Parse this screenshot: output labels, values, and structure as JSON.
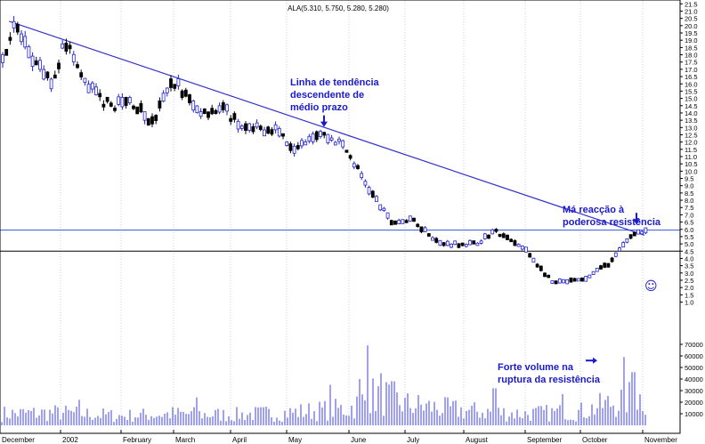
{
  "window": {
    "title": "ALA(5.310, 5.750, 5.280, 5.280)"
  },
  "chart_data": {
    "type": "candlestick",
    "title": "ALA(5.310, 5.750, 5.280, 5.280)",
    "price_axis": {
      "range": [
        0.7,
        21.6
      ],
      "ticks": [
        "1.0",
        "1.5",
        "2.0",
        "2.5",
        "3.0",
        "3.5",
        "4.0",
        "4.5",
        "5.0",
        "5.5",
        "6.0",
        "6.5",
        "7.0",
        "7.5",
        "8.0",
        "8.5",
        "9.0",
        "9.5",
        "10.0",
        "10.5",
        "11.0",
        "11.5",
        "12.0",
        "12.5",
        "13.0",
        "13.5",
        "14.0",
        "14.5",
        "15.0",
        "15.5",
        "16.0",
        "16.5",
        "17.0",
        "17.5",
        "18.0",
        "18.5",
        "19.0",
        "19.5",
        "20.0",
        "20.5",
        "21.0",
        "21.5"
      ]
    },
    "volume_axis": {
      "range": [
        0,
        75000
      ],
      "ticks": [
        "10000",
        "20000",
        "30000",
        "40000",
        "50000",
        "60000",
        "70000"
      ]
    },
    "months": [
      "December",
      "2002",
      "February",
      "March",
      "April",
      "May",
      "June",
      "July",
      "August",
      "September",
      "October",
      "November"
    ],
    "price_path": [
      {
        "month": 0,
        "price": 17.5
      },
      {
        "month": 0.25,
        "price": 20.0
      },
      {
        "month": 0.6,
        "price": 17.2
      },
      {
        "month": 0.9,
        "price": 16.0
      },
      {
        "month": 1.05,
        "price": 19.3
      },
      {
        "month": 1.4,
        "price": 16.0
      },
      {
        "month": 1.8,
        "price": 14.5
      },
      {
        "month": 2.2,
        "price": 14.8
      },
      {
        "month": 2.6,
        "price": 13.3
      },
      {
        "month": 3.0,
        "price": 16.3
      },
      {
        "month": 3.4,
        "price": 14.2
      },
      {
        "month": 3.9,
        "price": 14.2
      },
      {
        "month": 4.3,
        "price": 12.8
      },
      {
        "month": 4.8,
        "price": 13.0
      },
      {
        "month": 5.1,
        "price": 11.7
      },
      {
        "month": 5.5,
        "price": 12.7
      },
      {
        "month": 5.9,
        "price": 11.8
      },
      {
        "month": 6.4,
        "price": 8.5
      },
      {
        "month": 6.75,
        "price": 6.5
      },
      {
        "month": 7.15,
        "price": 6.6
      },
      {
        "month": 7.6,
        "price": 5.0
      },
      {
        "month": 8.2,
        "price": 5.0
      },
      {
        "month": 8.5,
        "price": 5.9
      },
      {
        "month": 9.0,
        "price": 4.6
      },
      {
        "month": 9.5,
        "price": 2.3
      },
      {
        "month": 10.05,
        "price": 2.5
      },
      {
        "month": 10.5,
        "price": 3.8
      },
      {
        "month": 10.85,
        "price": 5.8
      }
    ],
    "volume_path": [
      {
        "month": 0,
        "volume": 11000
      },
      {
        "month": 1.0,
        "volume": 12000
      },
      {
        "month": 2.0,
        "volume": 9000
      },
      {
        "month": 3.0,
        "volume": 11000
      },
      {
        "month": 4.0,
        "volume": 10000
      },
      {
        "month": 5.0,
        "volume": 12000
      },
      {
        "month": 6.0,
        "volume": 16000
      },
      {
        "month": 6.5,
        "volume": 30000
      },
      {
        "month": 7.0,
        "volume": 20000
      },
      {
        "month": 8.0,
        "volume": 14000
      },
      {
        "month": 9.0,
        "volume": 11000
      },
      {
        "month": 10.0,
        "volume": 13000
      },
      {
        "month": 10.8,
        "volume": 26000
      }
    ],
    "volume_spikes": [
      {
        "month": 6.35,
        "volume": 69000
      },
      {
        "month": 6.55,
        "volume": 45000
      },
      {
        "month": 6.2,
        "volume": 40000
      },
      {
        "month": 5.7,
        "volume": 35000
      },
      {
        "month": 6.8,
        "volume": 38000
      },
      {
        "month": 10.7,
        "volume": 59000
      },
      {
        "month": 10.85,
        "volume": 46000
      },
      {
        "month": 8.5,
        "volume": 32000
      },
      {
        "month": 9.7,
        "volume": 27000
      },
      {
        "month": 3.4,
        "volume": 24000
      },
      {
        "month": 1.3,
        "volume": 22000
      }
    ],
    "trendline": {
      "from": {
        "month": 0.15,
        "price": 20.3
      },
      "to": {
        "month": 11.05,
        "price": 5.6
      }
    },
    "support_lines": [
      {
        "price": 5.95
      },
      {
        "price": 4.5
      }
    ],
    "annotations": [
      {
        "lines": [
          "Linha de tendência",
          "descendente de",
          "médio prazo"
        ],
        "arrow": {
          "month": 5.6,
          "price": 13.1
        }
      },
      {
        "lines": [
          "Má reacção à",
          "poderosa resistência"
        ],
        "arrow": {
          "month": 10.9,
          "price": 6.4
        }
      },
      {
        "lines": [
          "Forte volume na",
          "ruptura da resistência"
        ],
        "arrow_right": {
          "month": 10.2,
          "volume": 56000
        }
      }
    ],
    "marker_symbol": "☺",
    "colors": {
      "trend": "#3333cc",
      "up": "#2222cc",
      "down": "#000000",
      "volume": "#4040e0",
      "support": "#000000",
      "resistance": "#3355dd",
      "annotation": "#1a1acc",
      "grid": "#d0d0d0"
    },
    "grid": true
  }
}
